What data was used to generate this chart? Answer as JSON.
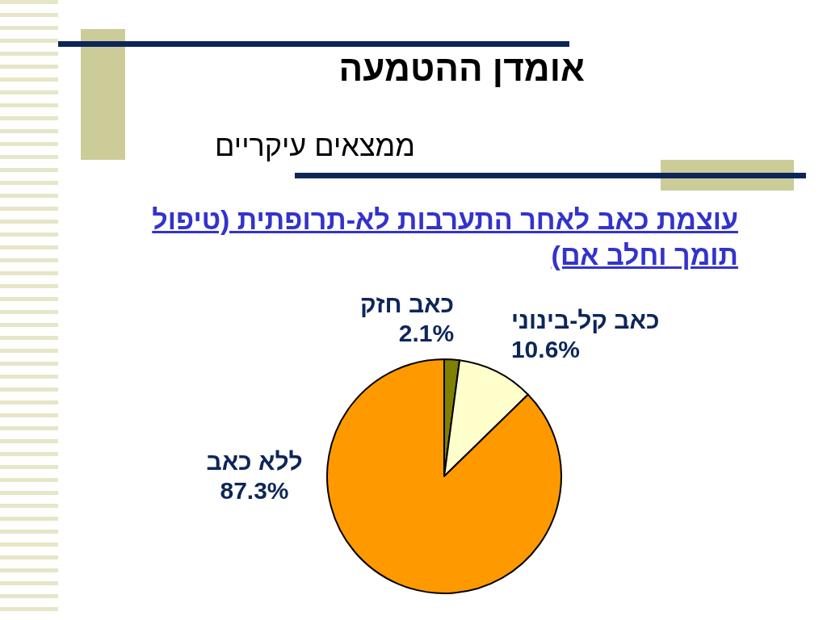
{
  "chart_data": {
    "type": "pie",
    "title": "אומדן ההטמעה",
    "subtitle": "ממצאים עיקריים",
    "annotations": [
      "עוצמת כאב לאחר התערבות לא-תרופתית (טיפול תומך וחלב אם)"
    ],
    "categories": [
      "כאב חזק",
      "כאב קל-בינוני",
      "ללא כאב"
    ],
    "values": [
      2.1,
      10.6,
      87.3
    ],
    "value_labels": [
      "2.1%",
      "10.6%",
      "87.3%"
    ],
    "colors": [
      "#808000",
      "#ffffcc",
      "#ff9900"
    ]
  }
}
